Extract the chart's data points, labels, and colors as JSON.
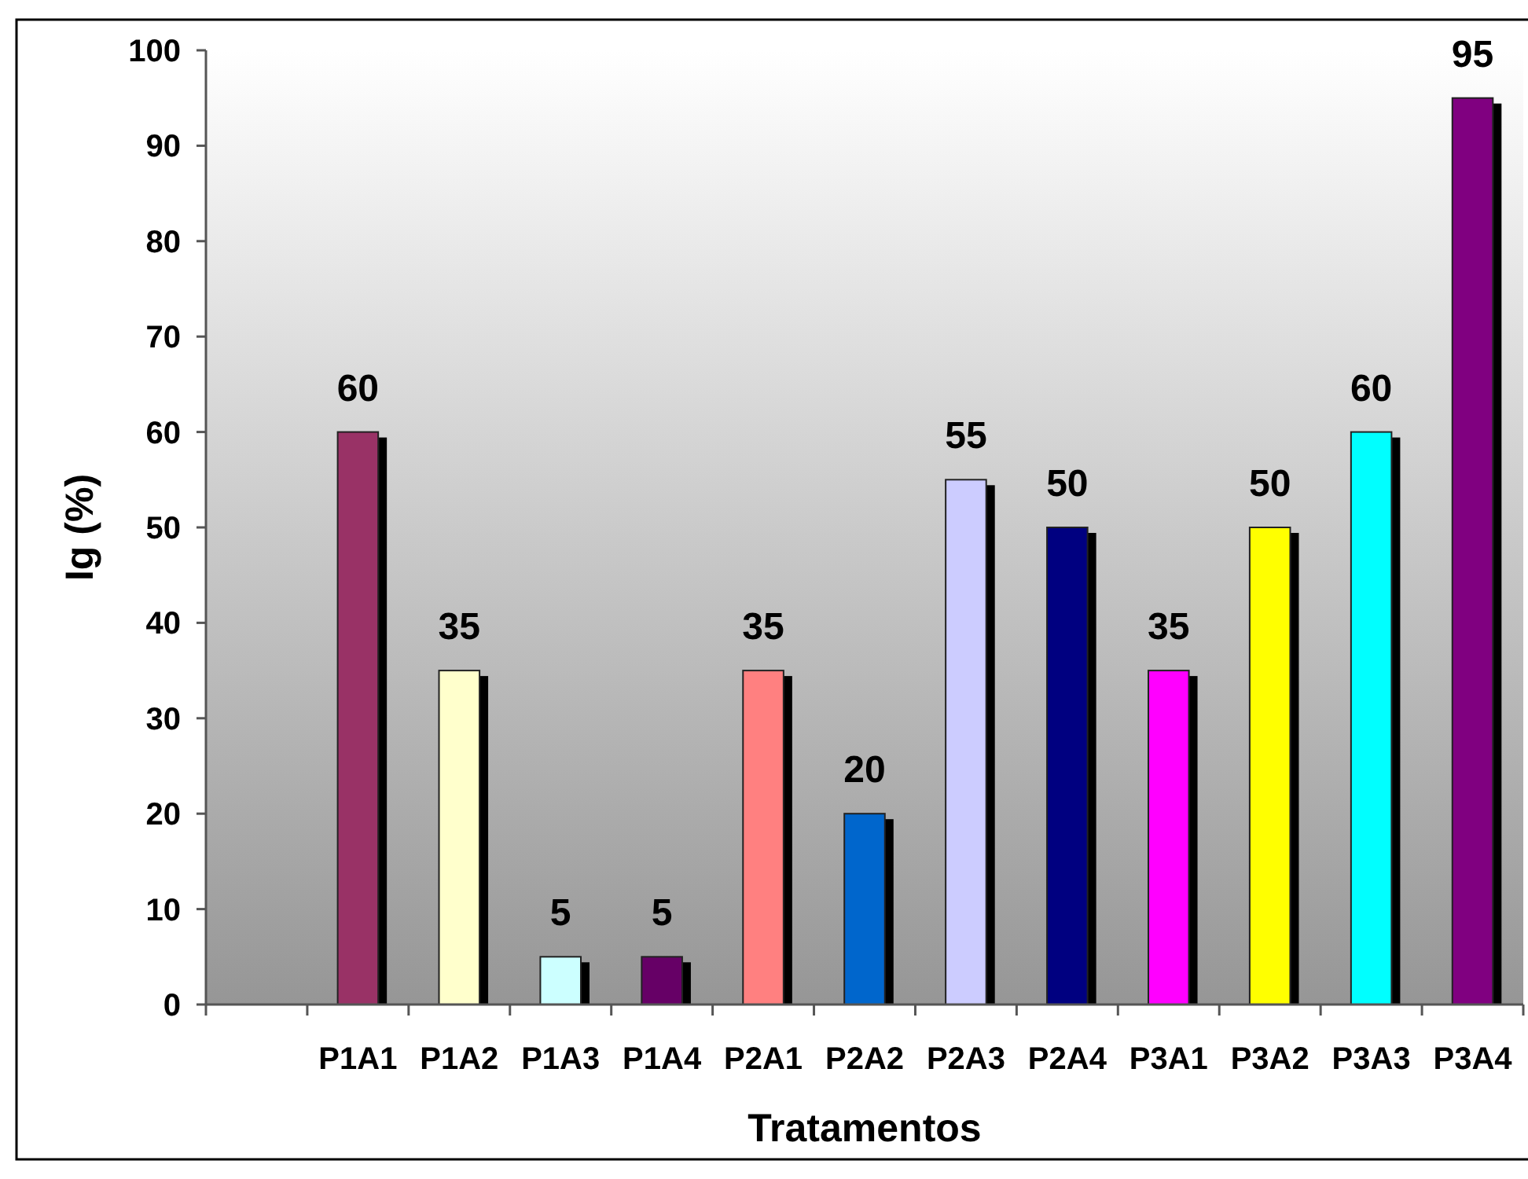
{
  "chart_data": {
    "type": "bar",
    "xlabel": "Tratamentos",
    "ylabel": "Ig (%)",
    "categories": [
      null,
      "P1A1",
      "P1A2",
      "P1A3",
      "P1A4",
      "P2A1",
      "P2A2",
      "P2A3",
      "P2A4",
      "P3A1",
      "P3A2",
      "P3A3",
      "P3A4"
    ],
    "values": [
      null,
      60,
      35,
      5,
      5,
      35,
      20,
      55,
      50,
      35,
      50,
      60,
      95
    ],
    "colors": [
      null,
      "#993366",
      "#ffffcc",
      "#ccffff",
      "#660066",
      "#ff8080",
      "#0066cc",
      "#ccccff",
      "#000080",
      "#ff00ff",
      "#ffff00",
      "#00ffff",
      "#800080"
    ],
    "ylim": [
      0,
      100
    ],
    "yticks": [
      0,
      10,
      20,
      30,
      40,
      50,
      60,
      70,
      80,
      90,
      100
    ],
    "data_labels": true
  }
}
